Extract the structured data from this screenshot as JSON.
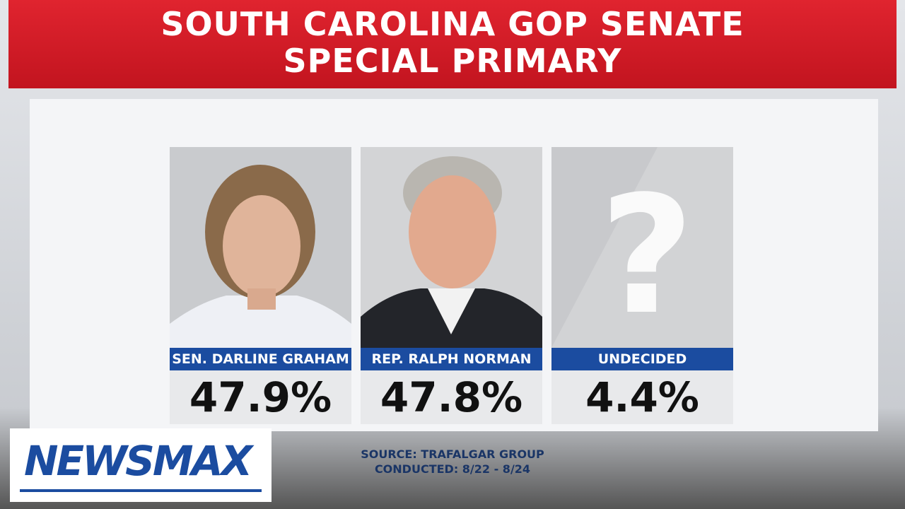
{
  "header": {
    "title_lines": [
      "SOUTH CAROLINA GOP SENATE",
      "SPECIAL PRIMARY"
    ]
  },
  "candidates": [
    {
      "name": "SEN. DARLINE GRAHAM",
      "share": "47.9%"
    },
    {
      "name": "REP. RALPH NORMAN",
      "share": "47.8%"
    },
    {
      "name": "UNDECIDED",
      "share": "4.4%",
      "photo_text": "?"
    }
  ],
  "source": {
    "lines": [
      "SOURCE: TRAFALGAR GROUP",
      "CONDUCTED: 8/22 - 8/24"
    ]
  },
  "logo": {
    "brand": "NEWSMAX"
  }
}
